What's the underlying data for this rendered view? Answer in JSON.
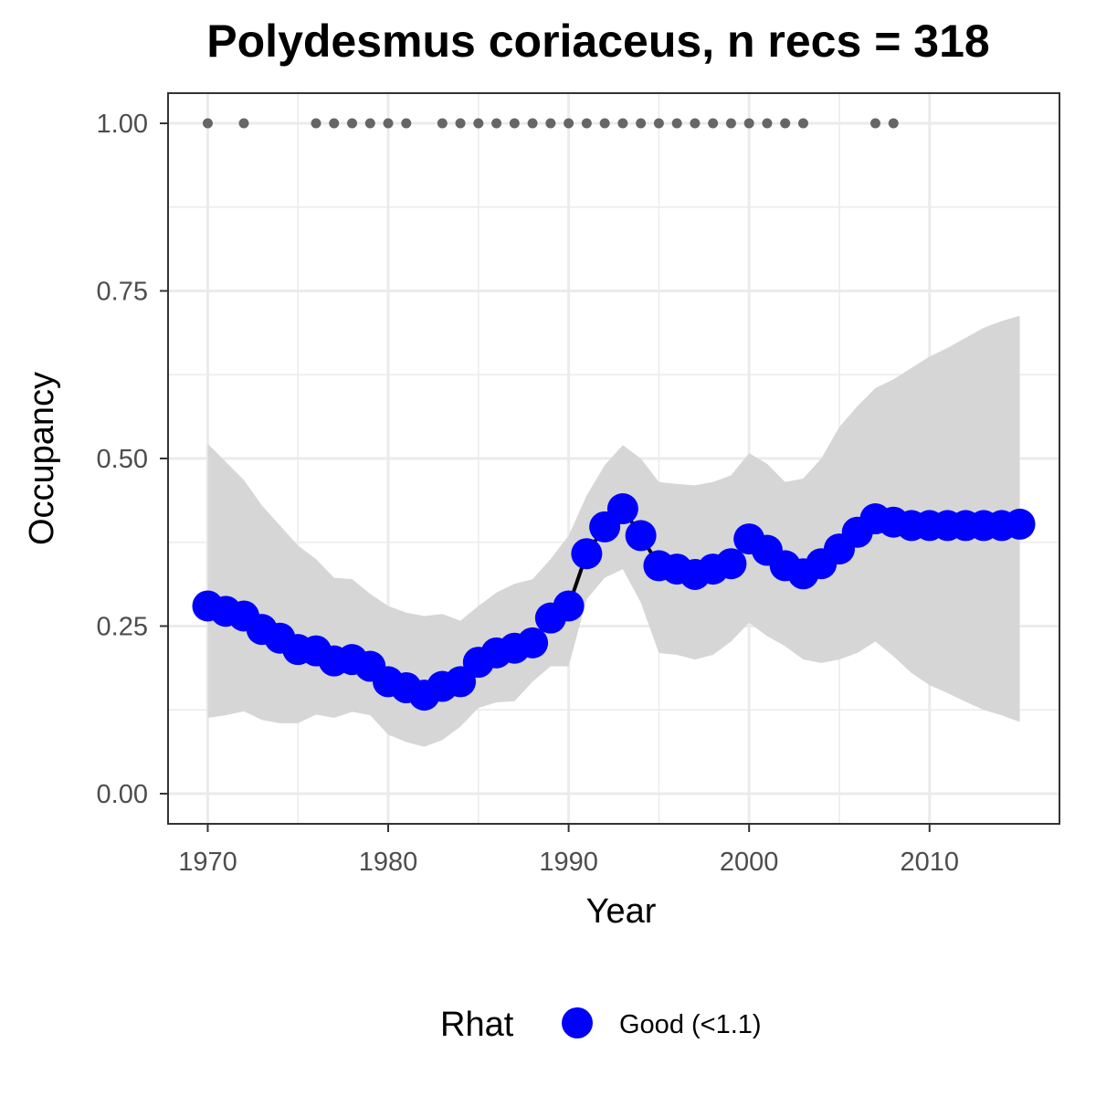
{
  "chart_data": {
    "type": "line",
    "title": "Polydesmus coriaceus, n recs = 318",
    "xlabel": "Year",
    "ylabel": "Occupancy",
    "xlim": [
      1967.8,
      2017.2
    ],
    "ylim": [
      -0.045,
      1.045
    ],
    "x_ticks": [
      1970,
      1980,
      1990,
      2000,
      2010
    ],
    "x_tick_labels": [
      "1970",
      "1980",
      "1990",
      "2000",
      "2010"
    ],
    "y_ticks": [
      0,
      0.25,
      0.5,
      0.75,
      1
    ],
    "y_tick_labels": [
      "0.00",
      "0.25",
      "0.50",
      "0.75",
      "1.00"
    ],
    "grid": true,
    "legend": {
      "position": "bottom",
      "title": "Rhat",
      "entries": [
        {
          "label": "Good (<1.1)",
          "color": "#0000ff"
        }
      ]
    },
    "colors": {
      "points": "#0000ff",
      "line": "#000000",
      "ribbon": "#d6d6d6",
      "record_points": "#666666",
      "grid": "#ebebeb",
      "panel_border": "#333333"
    },
    "series": [
      {
        "type": "line",
        "x": [
          1970,
          1971,
          1972,
          1973,
          1974,
          1975,
          1976,
          1977,
          1978,
          1979,
          1980,
          1981,
          1982,
          1983,
          1984,
          1985,
          1986,
          1987,
          1988,
          1989,
          1990,
          1991,
          1992,
          1993,
          1994,
          1995,
          1996,
          1997,
          1998,
          1999,
          2000,
          2001,
          2002,
          2003,
          2004,
          2005,
          2006,
          2007,
          2008,
          2009,
          2010,
          2011,
          2012,
          2013,
          2014,
          2015
        ],
        "y": [
          0.28,
          0.272,
          0.265,
          0.245,
          0.232,
          0.215,
          0.213,
          0.198,
          0.2,
          0.19,
          0.167,
          0.158,
          0.147,
          0.16,
          0.167,
          0.196,
          0.21,
          0.217,
          0.225,
          0.262,
          0.28,
          0.358,
          0.398,
          0.425,
          0.385,
          0.34,
          0.335,
          0.327,
          0.335,
          0.343,
          0.38,
          0.363,
          0.34,
          0.328,
          0.343,
          0.365,
          0.39,
          0.41,
          0.405,
          0.4,
          0.4,
          0.4,
          0.4,
          0.4,
          0.4,
          0.402
        ]
      },
      {
        "type": "ribbon",
        "x": [
          1970,
          1971,
          1972,
          1973,
          1974,
          1975,
          1976,
          1977,
          1978,
          1979,
          1980,
          1981,
          1982,
          1983,
          1984,
          1985,
          1986,
          1987,
          1988,
          1989,
          1990,
          1991,
          1992,
          1993,
          1994,
          1995,
          1996,
          1997,
          1998,
          1999,
          2000,
          2001,
          2002,
          2003,
          2004,
          2005,
          2006,
          2007,
          2008,
          2009,
          2010,
          2011,
          2012,
          2013,
          2014,
          2015
        ],
        "lower": [
          0.113,
          0.117,
          0.123,
          0.11,
          0.105,
          0.105,
          0.118,
          0.113,
          0.122,
          0.117,
          0.088,
          0.077,
          0.07,
          0.08,
          0.1,
          0.128,
          0.136,
          0.138,
          0.167,
          0.19,
          0.19,
          0.29,
          0.322,
          0.335,
          0.285,
          0.21,
          0.207,
          0.2,
          0.207,
          0.227,
          0.255,
          0.235,
          0.22,
          0.2,
          0.195,
          0.2,
          0.21,
          0.227,
          0.205,
          0.18,
          0.162,
          0.15,
          0.137,
          0.125,
          0.117,
          0.107
        ],
        "upper": [
          0.522,
          0.495,
          0.468,
          0.43,
          0.4,
          0.37,
          0.35,
          0.322,
          0.32,
          0.298,
          0.28,
          0.27,
          0.265,
          0.268,
          0.258,
          0.28,
          0.3,
          0.313,
          0.32,
          0.35,
          0.385,
          0.445,
          0.49,
          0.52,
          0.5,
          0.465,
          0.462,
          0.46,
          0.465,
          0.475,
          0.508,
          0.492,
          0.465,
          0.47,
          0.5,
          0.547,
          0.578,
          0.605,
          0.618,
          0.635,
          0.652,
          0.665,
          0.68,
          0.695,
          0.705,
          0.713
        ]
      },
      {
        "type": "records",
        "x": [
          1970,
          1972,
          1976,
          1977,
          1978,
          1979,
          1980,
          1981,
          1983,
          1984,
          1985,
          1986,
          1987,
          1988,
          1989,
          1990,
          1991,
          1992,
          1993,
          1994,
          1995,
          1996,
          1997,
          1998,
          1999,
          2000,
          2001,
          2002,
          2003,
          2007,
          2008
        ],
        "y": [
          1,
          1,
          1,
          1,
          1,
          1,
          1,
          1,
          1,
          1,
          1,
          1,
          1,
          1,
          1,
          1,
          1,
          1,
          1,
          1,
          1,
          1,
          1,
          1,
          1,
          1,
          1,
          1,
          1,
          1,
          1
        ]
      }
    ]
  }
}
